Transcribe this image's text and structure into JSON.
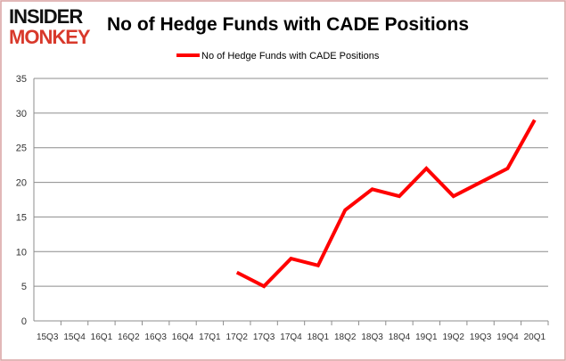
{
  "logo": {
    "line1": "INSIDER",
    "line2": "MONKEY"
  },
  "chart_data": {
    "type": "line",
    "title": "No of Hedge Funds with CADE Positions",
    "xlabel": "",
    "ylabel": "",
    "categories": [
      "15Q3",
      "15Q4",
      "16Q1",
      "16Q2",
      "16Q3",
      "16Q4",
      "17Q1",
      "17Q2",
      "17Q3",
      "17Q4",
      "18Q1",
      "18Q2",
      "18Q3",
      "18Q4",
      "19Q1",
      "19Q2",
      "19Q3",
      "19Q4",
      "20Q1"
    ],
    "series": [
      {
        "name": "No of Hedge Funds with CADE Positions",
        "color": "#ff0000",
        "values": [
          null,
          null,
          null,
          null,
          null,
          null,
          null,
          7,
          5,
          9,
          8,
          16,
          19,
          18,
          22,
          18,
          20,
          22,
          29
        ]
      }
    ],
    "ylim": [
      0,
      35
    ],
    "yticks": [
      0,
      5,
      10,
      15,
      20,
      25,
      30,
      35
    ],
    "grid": true,
    "legend": "top-center"
  }
}
